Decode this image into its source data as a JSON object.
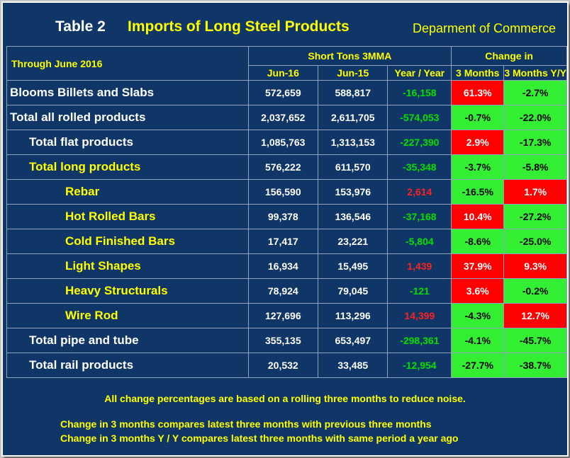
{
  "header": {
    "table_number": "Table 2",
    "title": "Imports of Long Steel Products",
    "department": "Deparment of Commerce"
  },
  "columns": {
    "through": "Through June 2016",
    "short_tons": "Short Tons 3MMA",
    "change_in": "Change in",
    "jun16": "Jun-16",
    "jun15": "Jun-15",
    "year_year": "Year / Year",
    "three_months": "3 Months",
    "three_months_yy": "3 Months Y/Y"
  },
  "rows": [
    {
      "label": "Blooms Billets and Slabs",
      "jun16": "572,659",
      "jun15": "588,817",
      "yoy": "-16,158",
      "m3": "61.3%",
      "m3yy": "-2.7%"
    },
    {
      "label": "Total all rolled products",
      "jun16": "2,037,652",
      "jun15": "2,611,705",
      "yoy": "-574,053",
      "m3": "-0.7%",
      "m3yy": "-22.0%"
    },
    {
      "label": "Total flat products",
      "jun16": "1,085,763",
      "jun15": "1,313,153",
      "yoy": "-227,390",
      "m3": "2.9%",
      "m3yy": "-17.3%"
    },
    {
      "label": "Total long products",
      "jun16": "576,222",
      "jun15": "611,570",
      "yoy": "-35,348",
      "m3": "-3.7%",
      "m3yy": "-5.8%"
    },
    {
      "label": "Rebar",
      "jun16": "156,590",
      "jun15": "153,976",
      "yoy": "2,614",
      "m3": "-16.5%",
      "m3yy": "1.7%"
    },
    {
      "label": "Hot Rolled Bars",
      "jun16": "99,378",
      "jun15": "136,546",
      "yoy": "-37,168",
      "m3": "10.4%",
      "m3yy": "-27.2%"
    },
    {
      "label": "Cold Finished Bars",
      "jun16": "17,417",
      "jun15": "23,221",
      "yoy": "-5,804",
      "m3": "-8.6%",
      "m3yy": "-25.0%"
    },
    {
      "label": "Light Shapes",
      "jun16": "16,934",
      "jun15": "15,495",
      "yoy": "1,439",
      "m3": "37.9%",
      "m3yy": "9.3%"
    },
    {
      "label": "Heavy Structurals",
      "jun16": "78,924",
      "jun15": "79,045",
      "yoy": "-121",
      "m3": "3.6%",
      "m3yy": "-0.2%"
    },
    {
      "label": "Wire Rod",
      "jun16": "127,696",
      "jun15": "113,296",
      "yoy": "14,399",
      "m3": "-4.3%",
      "m3yy": "12.7%"
    },
    {
      "label": "Total pipe and tube",
      "jun16": "355,135",
      "jun15": "653,497",
      "yoy": "-298,361",
      "m3": "-4.1%",
      "m3yy": "-45.7%"
    },
    {
      "label": "Total rail products",
      "jun16": "20,532",
      "jun15": "33,485",
      "yoy": "-12,954",
      "m3": "-27.7%",
      "m3yy": "-38.7%"
    }
  ],
  "notes": {
    "rolling": "All change percentages are based on a rolling three months to reduce noise.",
    "m3": "Change in 3 months compares latest three months with previous three months",
    "m3yy": "Change in 3 months  Y / Y compares latest three months with same period a year ago"
  }
}
